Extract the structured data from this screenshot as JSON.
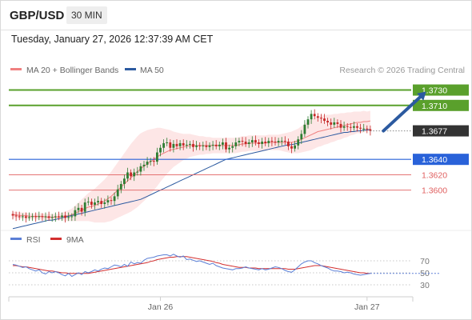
{
  "header": {
    "symbol": "GBP/USD",
    "timeframe": "30 MIN"
  },
  "datetime": "Tuesday, January 27, 2026 12:37:39 AM CET",
  "credit": "Research © 2026 Trading Central",
  "colors": {
    "ma20": "#f08080",
    "ma50": "#2c5aa0",
    "bollinger_fill": "#fde2e2",
    "resistance": "#5aa02c",
    "support": "#2962d9",
    "minor_support": "#e06060",
    "bull_candle": "#2e7d32",
    "bear_candle": "#c62828",
    "rsi": "#5b7fd6",
    "rsi_ma": "#d32f2f",
    "arrow": "#2c5aa0",
    "last_price_bg": "#333333"
  },
  "chart_data": [
    {
      "type": "candlestick",
      "title": "GBP/USD 30 MIN",
      "legend": [
        {
          "name": "MA 20 + Bollinger Bands",
          "color": "#f08080"
        },
        {
          "name": "MA 50",
          "color": "#2c5aa0"
        }
      ],
      "legend_placement": "top-left",
      "x_ticks": [
        "Jan 26",
        "Jan 27"
      ],
      "x_tick_index": [
        45,
        108
      ],
      "ylim": [
        1.3555,
        1.3742
      ],
      "levels": [
        {
          "value": "1.3730",
          "kind": "resistance"
        },
        {
          "value": "1.3710",
          "kind": "resistance"
        },
        {
          "value": "1.3640",
          "kind": "support"
        },
        {
          "value": "1.3620",
          "kind": "minor_support"
        },
        {
          "value": "1.3600",
          "kind": "minor_support"
        }
      ],
      "last_price": "1.3677",
      "target_arrow": {
        "from": [
          113,
          1.3677
        ],
        "to": [
          126,
          1.3728
        ]
      },
      "closes": [
        1.3567,
        1.3566,
        1.3565,
        1.3566,
        1.3564,
        1.3565,
        1.3566,
        1.3565,
        1.3566,
        1.3565,
        1.3566,
        1.3564,
        1.3565,
        1.3566,
        1.3565,
        1.3567,
        1.3564,
        1.3565,
        1.3566,
        1.3574,
        1.3577,
        1.3572,
        1.3584,
        1.3585,
        1.3581,
        1.3584,
        1.3586,
        1.3582,
        1.3584,
        1.3587,
        1.3586,
        1.3592,
        1.3601,
        1.3608,
        1.3615,
        1.3623,
        1.3618,
        1.3623,
        1.3624,
        1.3631,
        1.3633,
        1.3637,
        1.3638,
        1.3637,
        1.3649,
        1.3655,
        1.3661,
        1.3662,
        1.3655,
        1.366,
        1.3657,
        1.3661,
        1.3658,
        1.3659,
        1.366,
        1.3656,
        1.3658,
        1.3657,
        1.3658,
        1.3656,
        1.3658,
        1.3659,
        1.3657,
        1.3659,
        1.3662,
        1.3653,
        1.3655,
        1.3657,
        1.3662,
        1.3664,
        1.3663,
        1.366,
        1.3662,
        1.3665,
        1.3662,
        1.366,
        1.3663,
        1.3661,
        1.3664,
        1.3663,
        1.3662,
        1.3664,
        1.3664,
        1.3663,
        1.3657,
        1.3654,
        1.3658,
        1.3666,
        1.3673,
        1.3685,
        1.3692,
        1.3699,
        1.3696,
        1.3694,
        1.3693,
        1.369,
        1.3688,
        1.3685,
        1.3688,
        1.3686,
        1.3681,
        1.3683,
        1.3682,
        1.3681,
        1.3683,
        1.3681,
        1.368,
        1.368,
        1.3679,
        1.3677
      ],
      "ma20": [
        1.3568,
        1.3568,
        1.3567,
        1.3567,
        1.3567,
        1.3566,
        1.3566,
        1.3566,
        1.3566,
        1.3566,
        1.3565,
        1.3565,
        1.3565,
        1.3565,
        1.3565,
        1.3566,
        1.3566,
        1.3567,
        1.3568,
        1.357,
        1.3572,
        1.3574,
        1.3576,
        1.3578,
        1.3579,
        1.358,
        1.3582,
        1.3584,
        1.3586,
        1.3589,
        1.3592,
        1.3596,
        1.36,
        1.3604,
        1.3608,
        1.3612,
        1.3616,
        1.362,
        1.3624,
        1.3628,
        1.3631,
        1.3634,
        1.3637,
        1.364,
        1.3643,
        1.3646,
        1.3648,
        1.365,
        1.3652,
        1.3653,
        1.3654,
        1.3655,
        1.3656,
        1.3657,
        1.3658,
        1.3658,
        1.3658,
        1.3658,
        1.3658,
        1.3658,
        1.3658,
        1.3658,
        1.3658,
        1.3658,
        1.3658,
        1.3658,
        1.3658,
        1.3658,
        1.3658,
        1.3659,
        1.366,
        1.366,
        1.3661,
        1.3661,
        1.3661,
        1.3661,
        1.3661,
        1.3661,
        1.3662,
        1.3662,
        1.3662,
        1.3662,
        1.3662,
        1.3662,
        1.3662,
        1.3662,
        1.3663,
        1.3664,
        1.3666,
        1.3668,
        1.367,
        1.3672,
        1.3674,
        1.3676,
        1.3677,
        1.3678,
        1.3679,
        1.368,
        1.3681,
        1.3682,
        1.3683,
        1.3684,
        1.3685,
        1.3686,
        1.3687,
        1.3688,
        1.3688,
        1.3689,
        1.3689,
        1.369
      ],
      "bb_width": [
        0.0004,
        0.0004,
        0.0004,
        0.0004,
        0.0004,
        0.0004,
        0.0004,
        0.0004,
        0.0004,
        0.0004,
        0.0004,
        0.0004,
        0.0004,
        0.0004,
        0.0004,
        0.0005,
        0.0006,
        0.0007,
        0.0008,
        0.001,
        0.0012,
        0.0014,
        0.0016,
        0.0018,
        0.002,
        0.0022,
        0.0024,
        0.0026,
        0.0028,
        0.003,
        0.0032,
        0.0034,
        0.0036,
        0.0038,
        0.004,
        0.0042,
        0.0044,
        0.0045,
        0.0046,
        0.0046,
        0.0045,
        0.0044,
        0.0042,
        0.004,
        0.0038,
        0.0035,
        0.0032,
        0.0029,
        0.0026,
        0.0023,
        0.0021,
        0.0019,
        0.0017,
        0.0016,
        0.0015,
        0.0014,
        0.0013,
        0.0012,
        0.0012,
        0.0011,
        0.0011,
        0.001,
        0.001,
        0.001,
        0.001,
        0.001,
        0.001,
        0.001,
        0.001,
        0.001,
        0.001,
        0.001,
        0.001,
        0.001,
        0.001,
        0.001,
        0.001,
        0.001,
        0.001,
        0.001,
        0.001,
        0.001,
        0.0011,
        0.0012,
        0.0013,
        0.0014,
        0.0015,
        0.0016,
        0.0017,
        0.0018,
        0.0019,
        0.002,
        0.002,
        0.002,
        0.002,
        0.0019,
        0.0019,
        0.0018,
        0.0018,
        0.0017,
        0.0017,
        0.0016,
        0.0016,
        0.0015,
        0.0015,
        0.0014,
        0.0014,
        0.0014,
        0.0013,
        0.0013
      ],
      "ma50": [
        1.355,
        1.3551,
        1.3552,
        1.3553,
        1.3554,
        1.3555,
        1.3556,
        1.3557,
        1.3558,
        1.3559,
        1.356,
        1.3561,
        1.3561,
        1.3562,
        1.3563,
        1.3564,
        1.3565,
        1.3566,
        1.3567,
        1.3568,
        1.3569,
        1.357,
        1.3571,
        1.3572,
        1.3573,
        1.3574,
        1.3575,
        1.3576,
        1.3577,
        1.3578,
        1.3579,
        1.358,
        1.3581,
        1.3582,
        1.3583,
        1.3584,
        1.3585,
        1.3586,
        1.3587,
        1.3588,
        1.359,
        1.3592,
        1.3594,
        1.3596,
        1.3598,
        1.36,
        1.3602,
        1.3604,
        1.3606,
        1.3608,
        1.361,
        1.3612,
        1.3614,
        1.3616,
        1.3618,
        1.362,
        1.3622,
        1.3624,
        1.3626,
        1.3628,
        1.363,
        1.3632,
        1.3634,
        1.3636,
        1.3638,
        1.364,
        1.3641,
        1.3642,
        1.3643,
        1.3644,
        1.3645,
        1.3646,
        1.3647,
        1.3648,
        1.3649,
        1.365,
        1.3651,
        1.3652,
        1.3653,
        1.3654,
        1.3655,
        1.3656,
        1.3657,
        1.3658,
        1.3659,
        1.3659,
        1.366,
        1.3661,
        1.3662,
        1.3663,
        1.3664,
        1.3665,
        1.3666,
        1.3667,
        1.3668,
        1.3669,
        1.367,
        1.3671,
        1.3672,
        1.3673,
        1.3674,
        1.3675,
        1.3675,
        1.3676,
        1.3676,
        1.3677,
        1.3677,
        1.3678,
        1.3678,
        1.3679
      ]
    },
    {
      "type": "line",
      "title": "RSI",
      "legend": [
        {
          "name": "RSI",
          "color": "#5b7fd6"
        },
        {
          "name": "9MA",
          "color": "#d32f2f"
        }
      ],
      "legend_placement": "top-left",
      "ylim": [
        10,
        90
      ],
      "y_ticks": [
        "70",
        "50",
        "30"
      ],
      "y_tick_values": [
        70,
        50,
        30
      ],
      "rsi": [
        64,
        63,
        61,
        59,
        60,
        57,
        55,
        53,
        55,
        50,
        48,
        52,
        50,
        52,
        50,
        47,
        45,
        49,
        44,
        47,
        50,
        47,
        52,
        50,
        52,
        55,
        53,
        56,
        58,
        57,
        60,
        63,
        62,
        60,
        64,
        61,
        68,
        65,
        67,
        66,
        71,
        74,
        75,
        76,
        78,
        79,
        80,
        80,
        78,
        81,
        78,
        76,
        78,
        72,
        73,
        71,
        69,
        70,
        68,
        66,
        64,
        66,
        62,
        60,
        58,
        57,
        56,
        55,
        57,
        57,
        58,
        60,
        58,
        57,
        56,
        55,
        57,
        55,
        56,
        58,
        60,
        59,
        57,
        54,
        52,
        51,
        55,
        60,
        65,
        68,
        70,
        70,
        67,
        65,
        62,
        60,
        58,
        55,
        53,
        53,
        52,
        50,
        51,
        50,
        48,
        47,
        46,
        47,
        48,
        49
      ],
      "ma9": [
        62,
        62,
        61,
        60,
        60,
        59,
        58,
        57,
        56,
        55,
        54,
        53,
        53,
        52,
        51,
        50,
        50,
        49,
        49,
        49,
        49,
        49,
        49,
        49,
        50,
        51,
        52,
        53,
        54,
        55,
        56,
        57,
        58,
        59,
        60,
        61,
        62,
        63,
        64,
        65,
        66,
        67,
        69,
        70,
        72,
        73,
        74,
        75,
        76,
        76,
        77,
        77,
        77,
        77,
        76,
        75,
        74,
        73,
        72,
        71,
        70,
        69,
        67,
        66,
        64,
        63,
        62,
        61,
        60,
        59,
        59,
        59,
        58,
        58,
        58,
        57,
        57,
        57,
        57,
        57,
        57,
        57,
        57,
        57,
        56,
        56,
        56,
        57,
        58,
        59,
        60,
        61,
        62,
        62,
        62,
        61,
        60,
        59,
        58,
        57,
        56,
        55,
        54,
        53,
        52,
        51,
        50,
        50,
        49,
        49
      ],
      "projection_to": 130
    }
  ]
}
